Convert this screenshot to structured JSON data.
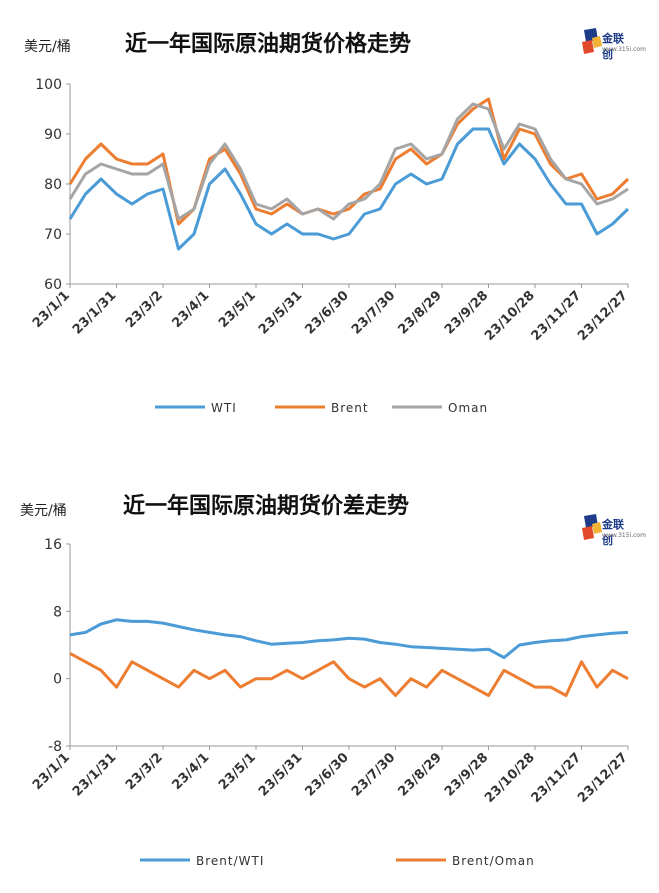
{
  "colors": {
    "wti": "#4A9BD6",
    "brent": "#ED7D31",
    "oman": "#A5A5A5",
    "brent_wti": "#4A9BD6",
    "brent_oman": "#ED7D31"
  },
  "logo": {
    "text": "金联创",
    "sub": "www.315i.com"
  },
  "chart_data": [
    {
      "type": "line",
      "title": "近一年国际原油期货价格走势",
      "unit": "美元/桶",
      "ylim": [
        60,
        100
      ],
      "yticks": [
        60,
        70,
        80,
        90,
        100
      ],
      "xticks": [
        "23/1/1",
        "23/1/31",
        "23/3/2",
        "23/4/1",
        "23/5/1",
        "23/5/31",
        "23/6/30",
        "23/7/30",
        "23/8/29",
        "23/9/28",
        "23/10/28",
        "23/11/27",
        "23/12/27"
      ],
      "grid": false,
      "legend": "bottom",
      "x": [
        "23/1/1",
        "23/1/10",
        "23/1/20",
        "23/1/31",
        "23/2/10",
        "23/2/20",
        "23/3/2",
        "23/3/12",
        "23/3/20",
        "23/4/1",
        "23/4/10",
        "23/4/20",
        "23/5/1",
        "23/5/10",
        "23/5/20",
        "23/5/31",
        "23/6/10",
        "23/6/20",
        "23/6/30",
        "23/7/10",
        "23/7/20",
        "23/7/30",
        "23/8/10",
        "23/8/20",
        "23/8/29",
        "23/9/10",
        "23/9/20",
        "23/9/28",
        "23/10/5",
        "23/10/15",
        "23/10/28",
        "23/11/5",
        "23/11/15",
        "23/11/27",
        "23/12/5",
        "23/12/15",
        "23/12/27"
      ],
      "series": [
        {
          "name": "WTI",
          "values": [
            73,
            78,
            81,
            78,
            76,
            78,
            79,
            67,
            70,
            80,
            83,
            78,
            72,
            70,
            72,
            70,
            70,
            69,
            70,
            74,
            75,
            80,
            82,
            80,
            81,
            88,
            91,
            91,
            84,
            88,
            85,
            80,
            76,
            76,
            70,
            72,
            75
          ]
        },
        {
          "name": "Brent",
          "values": [
            80,
            85,
            88,
            85,
            84,
            84,
            86,
            72,
            75,
            85,
            87,
            82,
            75,
            74,
            76,
            74,
            75,
            74,
            75,
            78,
            79,
            85,
            87,
            84,
            86,
            92,
            95,
            97,
            85,
            91,
            90,
            84,
            81,
            82,
            77,
            78,
            81
          ]
        },
        {
          "name": "Oman",
          "values": [
            77,
            82,
            84,
            83,
            82,
            82,
            84,
            73,
            75,
            84,
            88,
            83,
            76,
            75,
            77,
            74,
            75,
            73,
            76,
            77,
            80,
            87,
            88,
            85,
            86,
            93,
            96,
            95,
            87,
            92,
            91,
            85,
            81,
            80,
            76,
            77,
            79
          ]
        }
      ]
    },
    {
      "type": "line",
      "title": "近一年国际原油期货价差走势",
      "unit": "美元/桶",
      "ylim": [
        -8,
        16
      ],
      "yticks": [
        -8,
        0,
        8,
        16
      ],
      "xticks": [
        "23/1/1",
        "23/1/31",
        "23/3/2",
        "23/4/1",
        "23/5/1",
        "23/5/31",
        "23/6/30",
        "23/7/30",
        "23/8/29",
        "23/9/28",
        "23/10/28",
        "23/11/27",
        "23/12/27"
      ],
      "grid": false,
      "legend": "bottom",
      "x": [
        "23/1/1",
        "23/1/10",
        "23/1/20",
        "23/1/31",
        "23/2/10",
        "23/2/20",
        "23/3/2",
        "23/3/12",
        "23/3/20",
        "23/4/1",
        "23/4/10",
        "23/4/20",
        "23/5/1",
        "23/5/10",
        "23/5/20",
        "23/5/31",
        "23/6/10",
        "23/6/20",
        "23/6/30",
        "23/7/10",
        "23/7/20",
        "23/7/30",
        "23/8/10",
        "23/8/20",
        "23/8/29",
        "23/9/10",
        "23/9/20",
        "23/9/28",
        "23/10/5",
        "23/10/15",
        "23/10/28",
        "23/11/5",
        "23/11/15",
        "23/11/27",
        "23/12/5",
        "23/12/15",
        "23/12/27"
      ],
      "series": [
        {
          "name": "Brent/WTI",
          "values": [
            5.2,
            5.5,
            6.5,
            7,
            6.8,
            6.8,
            6.6,
            6.2,
            5.8,
            5.5,
            5.2,
            5,
            4.5,
            4.1,
            4.2,
            4.3,
            4.5,
            4.6,
            4.8,
            4.7,
            4.3,
            4.1,
            3.8,
            3.7,
            3.6,
            3.5,
            3.4,
            3.5,
            2.5,
            4,
            4.3,
            4.5,
            4.6,
            5,
            5.2,
            5.4,
            5.5
          ]
        },
        {
          "name": "Brent/Oman",
          "values": [
            3,
            2,
            1,
            -1,
            2,
            1,
            0,
            -1,
            1,
            0,
            1,
            -1,
            0,
            0,
            1,
            0,
            1,
            2,
            0,
            -1,
            0,
            -2,
            0,
            -1,
            1,
            0,
            -1,
            -2,
            1,
            0,
            -1,
            -1,
            -2,
            2,
            -1,
            1,
            0
          ]
        }
      ]
    }
  ]
}
